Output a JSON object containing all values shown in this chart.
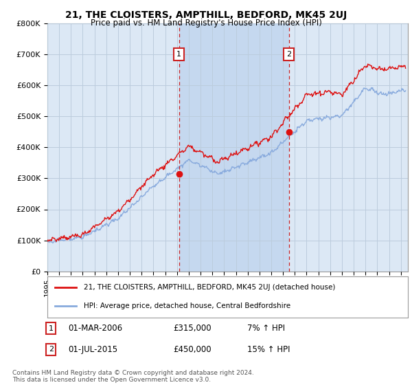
{
  "title": "21, THE CLOISTERS, AMPTHILL, BEDFORD, MK45 2UJ",
  "subtitle": "Price paid vs. HM Land Registry's House Price Index (HPI)",
  "ylim": [
    0,
    800000
  ],
  "xlim_start": 1995,
  "xlim_end": 2025.5,
  "sale1_date": 2006.17,
  "sale1_price_k": 315,
  "sale2_date": 2015.5,
  "sale2_price_k": 450,
  "legend_line1": "21, THE CLOISTERS, AMPTHILL, BEDFORD, MK45 2UJ (detached house)",
  "legend_line2": "HPI: Average price, detached house, Central Bedfordshire",
  "footer": "Contains HM Land Registry data © Crown copyright and database right 2024.\nThis data is licensed under the Open Government Licence v3.0.",
  "red_color": "#dd1111",
  "blue_color": "#88aadd",
  "bg_color": "#dce8f5",
  "shade_color": "#c5d8ef",
  "grid_color": "#bbccdd",
  "box_color": "#cc2222",
  "white": "#ffffff"
}
